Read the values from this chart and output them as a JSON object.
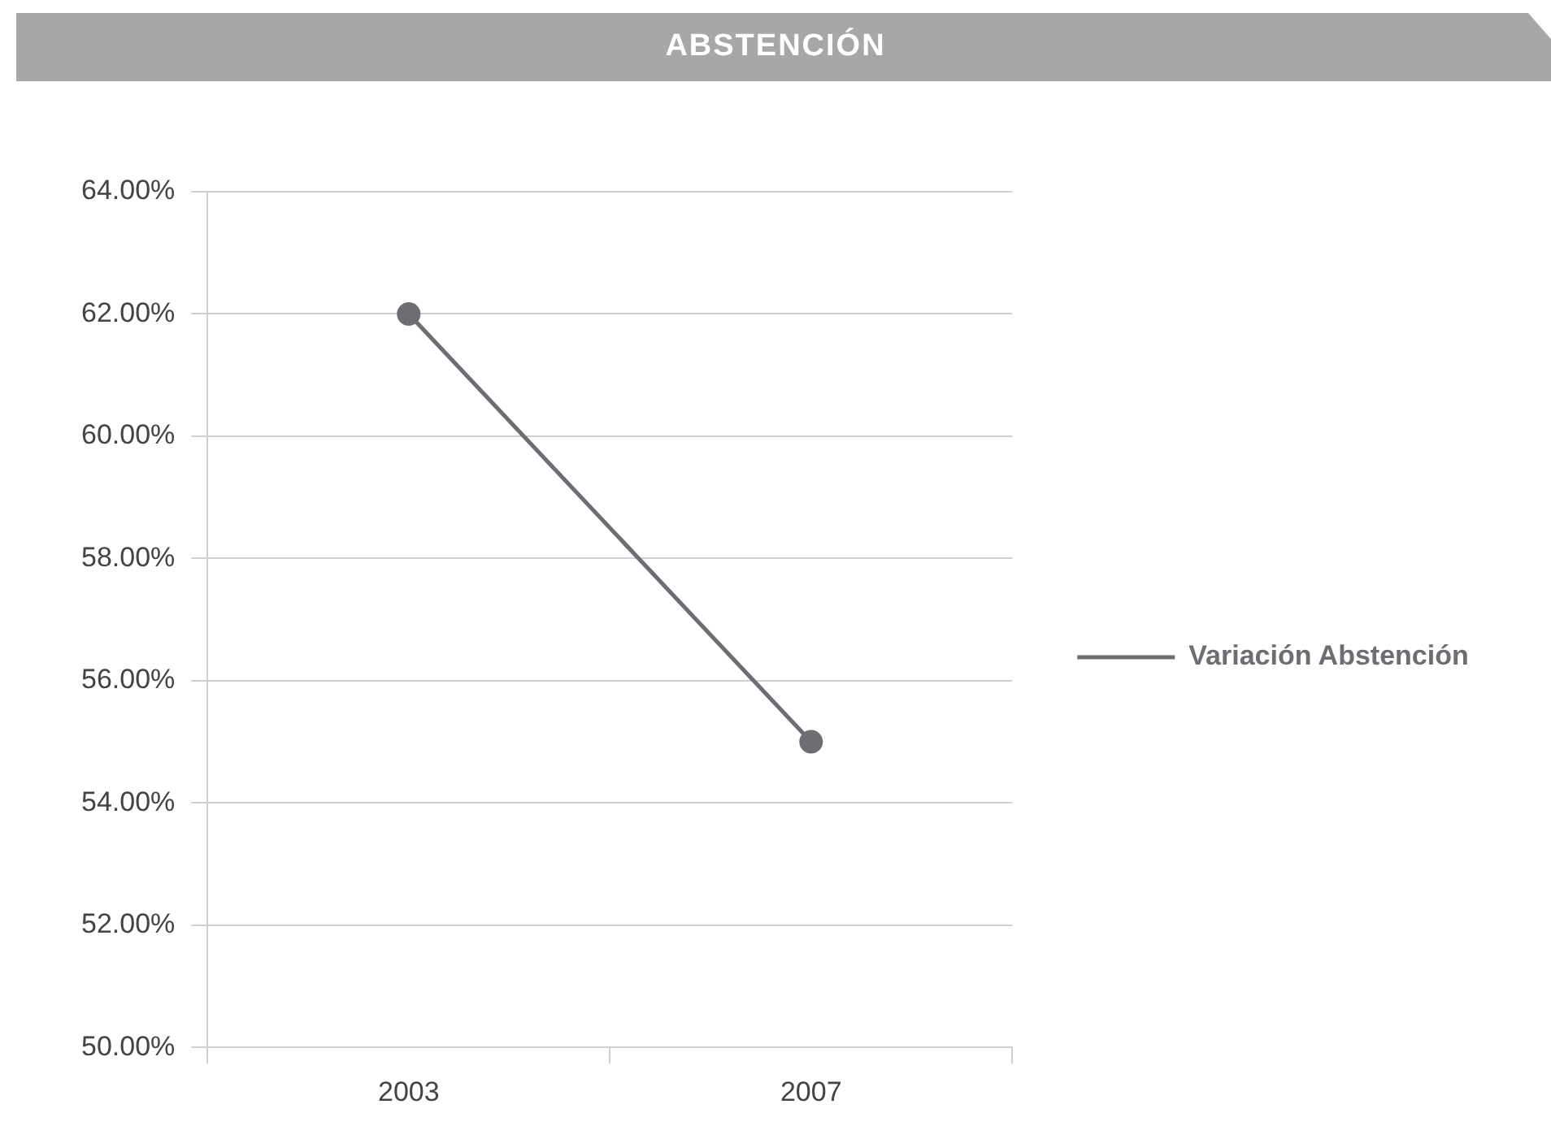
{
  "chart_data": {
    "type": "line",
    "title": "ABSTENCIÓN",
    "categories": [
      "2003",
      "2007"
    ],
    "series": [
      {
        "name": "Variación Abstención",
        "color": "#6d6d72",
        "values": [
          62,
          55
        ]
      }
    ],
    "ylim": [
      50,
      64
    ],
    "yticks": [
      {
        "value": 50,
        "label": "50.00%"
      },
      {
        "value": 52,
        "label": "52.00%"
      },
      {
        "value": 54,
        "label": "54.00%"
      },
      {
        "value": 56,
        "label": "56.00%"
      },
      {
        "value": 58,
        "label": "58.00%"
      },
      {
        "value": 60,
        "label": "60.00%"
      },
      {
        "value": 62,
        "label": "62.00%"
      },
      {
        "value": 64,
        "label": "64.00%"
      }
    ],
    "grid": "y",
    "legend": "right",
    "marker": "circle",
    "line_style": "solid"
  }
}
